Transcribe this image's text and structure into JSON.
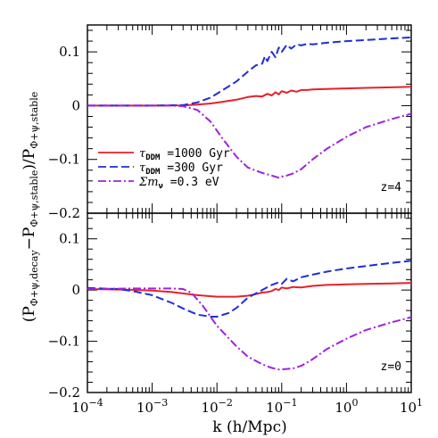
{
  "chart_data": {
    "type": "line",
    "xlabel": "k (h/Mpc)",
    "ylabel": "(PΦ+ψ,decay − PΦ+ψ,stable)/PΦ+ψ,stable",
    "ylabel_parts": {
      "open": "(P",
      "sub1": "Φ+ψ,decay",
      "minus": "−P",
      "sub2": "Φ+ψ,stable",
      "close": ")/P",
      "sub3": "Φ+ψ,stable"
    },
    "x_scale": "log",
    "xlim": [
      0.0001,
      10
    ],
    "x_tick_labels": [
      {
        "base": "10",
        "exp": "−4"
      },
      {
        "base": "10",
        "exp": "−3"
      },
      {
        "base": "10",
        "exp": "−2"
      },
      {
        "base": "10",
        "exp": "−1"
      },
      {
        "base": "10",
        "exp": "0"
      },
      {
        "base": "10",
        "exp": "1"
      }
    ],
    "legend": {
      "placement": "lower-left of top panel",
      "entries": [
        {
          "symbol": "τ",
          "sub": "DDM",
          "text": " =1000 Gyr",
          "color": "#e8202a",
          "dash": "solid"
        },
        {
          "symbol": "τ",
          "sub": "DDM",
          "text": " =300 Gyr",
          "color": "#1f2fd8",
          "dash": "dashed"
        },
        {
          "symbol": "Σm",
          "sub": "ν",
          "text": " =0.3 eV",
          "color": "#a020e0",
          "dash": "dashdot"
        }
      ]
    },
    "panels": [
      {
        "label": "z=4",
        "ylim": [
          -0.2,
          0.15
        ],
        "y_tick_labels": [
          "0.1",
          "0",
          "−0.1",
          "−0.2"
        ],
        "y_tick_values": [
          0.1,
          0,
          -0.1,
          -0.2
        ],
        "series": [
          {
            "color": "#e8202a",
            "dash": "solid",
            "x": [
              0.0001,
              0.001,
              0.003,
              0.005,
              0.008,
              0.012,
              0.02,
              0.03,
              0.04,
              0.05,
              0.06,
              0.07,
              0.08,
              0.09,
              0.1,
              0.12,
              0.14,
              0.17,
              0.2,
              0.25,
              0.3,
              0.5,
              1,
              2,
              5,
              10
            ],
            "y": [
              0,
              0,
              0.0005,
              0.002,
              0.004,
              0.007,
              0.011,
              0.016,
              0.018,
              0.017,
              0.022,
              0.019,
              0.025,
              0.021,
              0.027,
              0.024,
              0.028,
              0.026,
              0.029,
              0.029,
              0.03,
              0.031,
              0.032,
              0.033,
              0.034,
              0.035
            ]
          },
          {
            "color": "#1f2fd8",
            "dash": "dashed",
            "x": [
              0.0001,
              0.001,
              0.003,
              0.005,
              0.008,
              0.012,
              0.02,
              0.03,
              0.04,
              0.05,
              0.055,
              0.06,
              0.07,
              0.08,
              0.09,
              0.1,
              0.12,
              0.14,
              0.17,
              0.2,
              0.25,
              0.3,
              0.5,
              1,
              2,
              5,
              10
            ],
            "y": [
              0,
              0,
              0.001,
              0.006,
              0.015,
              0.028,
              0.045,
              0.063,
              0.075,
              0.078,
              0.092,
              0.083,
              0.1,
              0.09,
              0.108,
              0.1,
              0.113,
              0.106,
              0.114,
              0.112,
              0.115,
              0.114,
              0.117,
              0.12,
              0.122,
              0.125,
              0.127
            ]
          },
          {
            "color": "#a020e0",
            "dash": "dashdot",
            "x": [
              0.0001,
              0.001,
              0.002,
              0.003,
              0.005,
              0.008,
              0.012,
              0.02,
              0.03,
              0.05,
              0.07,
              0.09,
              0.1,
              0.12,
              0.15,
              0.2,
              0.3,
              0.5,
              1,
              2,
              5,
              10
            ],
            "y": [
              0,
              0,
              0,
              -0.001,
              -0.008,
              -0.03,
              -0.06,
              -0.095,
              -0.115,
              -0.125,
              -0.13,
              -0.134,
              -0.132,
              -0.13,
              -0.126,
              -0.118,
              -0.1,
              -0.08,
              -0.058,
              -0.04,
              -0.025,
              -0.015
            ]
          }
        ]
      },
      {
        "label": "z=0",
        "ylim": [
          -0.2,
          0.15
        ],
        "y_tick_labels": [
          "0.1",
          "0",
          "−0.1",
          "−0.2"
        ],
        "y_tick_values": [
          0.1,
          0,
          -0.1,
          -0.2
        ],
        "series": [
          {
            "color": "#e8202a",
            "dash": "solid",
            "x": [
              0.0001,
              0.0005,
              0.001,
              0.002,
              0.005,
              0.01,
              0.02,
              0.03,
              0.04,
              0.05,
              0.06,
              0.07,
              0.08,
              0.09,
              0.1,
              0.12,
              0.15,
              0.2,
              0.3,
              0.5,
              1,
              2,
              5,
              10
            ],
            "y": [
              0.002,
              0.0005,
              -0.001,
              -0.004,
              -0.01,
              -0.013,
              -0.013,
              -0.011,
              -0.008,
              -0.005,
              -0.004,
              -0.002,
              0.002,
              0.0,
              0.005,
              0.003,
              0.006,
              0.005,
              0.008,
              0.01,
              0.011,
              0.012,
              0.013,
              0.014
            ]
          },
          {
            "color": "#1f2fd8",
            "dash": "dashed",
            "x": [
              0.0001,
              0.0003,
              0.0005,
              0.001,
              0.002,
              0.003,
              0.005,
              0.008,
              0.01,
              0.015,
              0.02,
              0.03,
              0.05,
              0.07,
              0.09,
              0.1,
              0.12,
              0.15,
              0.2,
              0.3,
              0.5,
              1,
              2,
              5,
              10
            ],
            "y": [
              0.004,
              0.002,
              -0.002,
              -0.01,
              -0.025,
              -0.036,
              -0.048,
              -0.052,
              -0.052,
              -0.045,
              -0.035,
              -0.015,
              0.0,
              0.01,
              0.015,
              0.012,
              0.022,
              0.017,
              0.025,
              0.03,
              0.036,
              0.042,
              0.047,
              0.053,
              0.057
            ]
          },
          {
            "color": "#a020e0",
            "dash": "dashdot",
            "x": [
              0.0001,
              0.0005,
              0.001,
              0.002,
              0.003,
              0.004,
              0.006,
              0.01,
              0.02,
              0.03,
              0.05,
              0.07,
              0.09,
              0.12,
              0.15,
              0.2,
              0.3,
              0.5,
              1,
              2,
              5,
              10
            ],
            "y": [
              0.002,
              0.003,
              0.003,
              0.003,
              0.002,
              -0.005,
              -0.03,
              -0.07,
              -0.11,
              -0.13,
              -0.145,
              -0.152,
              -0.155,
              -0.154,
              -0.153,
              -0.148,
              -0.135,
              -0.115,
              -0.095,
              -0.078,
              -0.063,
              -0.053
            ]
          }
        ]
      }
    ]
  }
}
